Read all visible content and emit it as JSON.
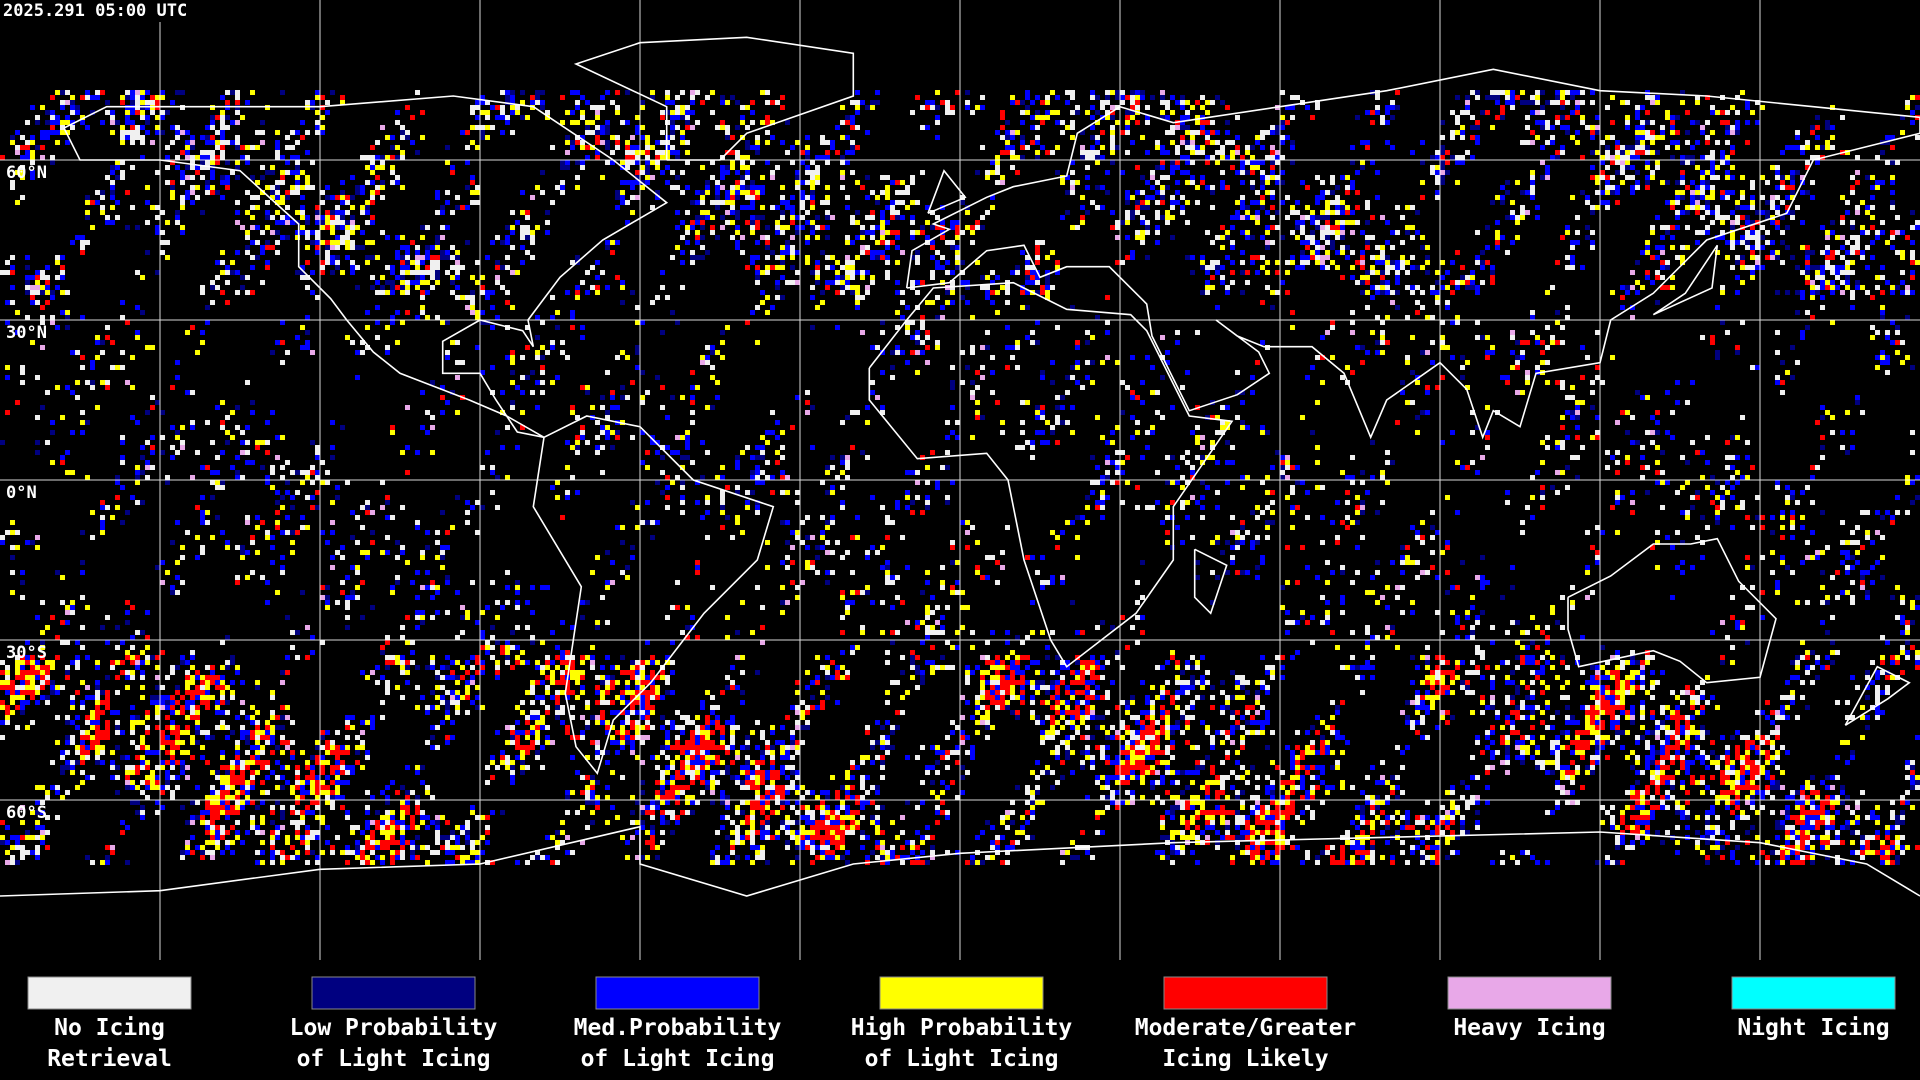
{
  "timestamp": "2025.291 05:00 UTC",
  "latitude_labels": [
    "60°N",
    "30°N",
    "0°N",
    "30°S",
    "60°S"
  ],
  "legend": [
    {
      "label_lines": [
        "No Icing",
        "Retrieval"
      ],
      "color": "#f0f0f0"
    },
    {
      "label_lines": [
        "Low Probability",
        "of Light Icing"
      ],
      "color": "#000080"
    },
    {
      "label_lines": [
        "Med.Probability",
        "of Light Icing"
      ],
      "color": "#0000ff"
    },
    {
      "label_lines": [
        "High Probability",
        "of Light Icing"
      ],
      "color": "#ffff00"
    },
    {
      "label_lines": [
        "Moderate/Greater",
        "Icing Likely"
      ],
      "color": "#ff0000"
    },
    {
      "label_lines": [
        "Heavy Icing"
      ],
      "color": "#e8a8e8"
    },
    {
      "label_lines": [
        "Night Icing"
      ],
      "color": "#00ffff"
    }
  ]
}
